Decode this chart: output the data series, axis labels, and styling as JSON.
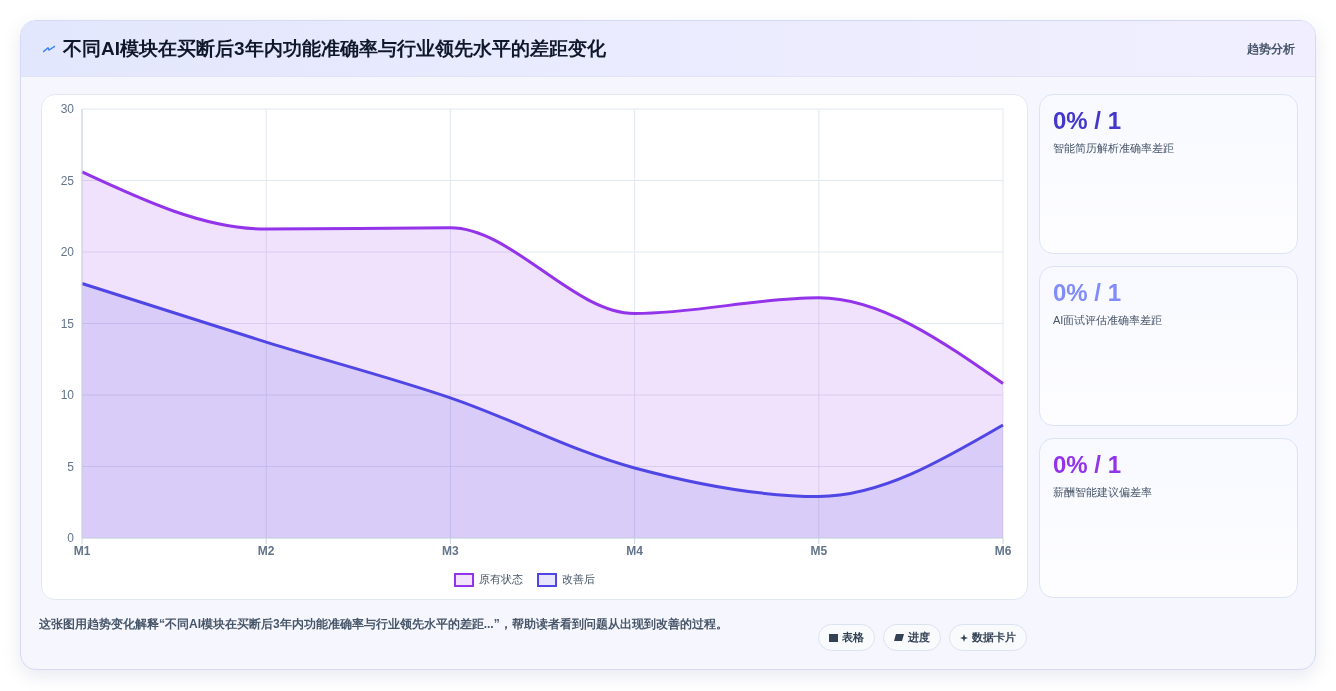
{
  "chart_data": [
    {
      "type": "area",
      "title": "不同AI模块在买断后3年内功能准确率与行业领先水平的差距变化",
      "categories": [
        "M1",
        "M2",
        "M3",
        "M4",
        "M5",
        "M6"
      ],
      "series": [
        {
          "name": "原有状态",
          "color": "#9333ea",
          "values": [
            25.6,
            21.6,
            21.7,
            15.7,
            16.8,
            10.8
          ]
        },
        {
          "name": "改善后",
          "color": "#4f46e5",
          "values": [
            17.8,
            13.7,
            9.8,
            4.9,
            2.9,
            7.9
          ]
        }
      ],
      "ylim": [
        0,
        30
      ],
      "yticks": [
        0,
        5,
        10,
        15,
        20,
        25,
        30
      ],
      "grid": true,
      "legend": "bottom",
      "annotations": [
        "趋势分析",
        "这张图用趋势变化解释“不同AI模块在买断后3年内功能准确率与行业领先水平的差距...”，帮助读者看到问题从出现到改善的过程。",
        "表格",
        "进度",
        "数据卡片"
      ]
    },
    {
      "type": "other",
      "title": "0% / 1",
      "subtitle": "智能简历解析准确率差距"
    },
    {
      "type": "other",
      "title": "0% / 1",
      "subtitle": "AI面试评估准确率差距"
    },
    {
      "type": "other",
      "title": "0% / 1",
      "subtitle": "薪酬智能建议偏差率"
    }
  ]
}
